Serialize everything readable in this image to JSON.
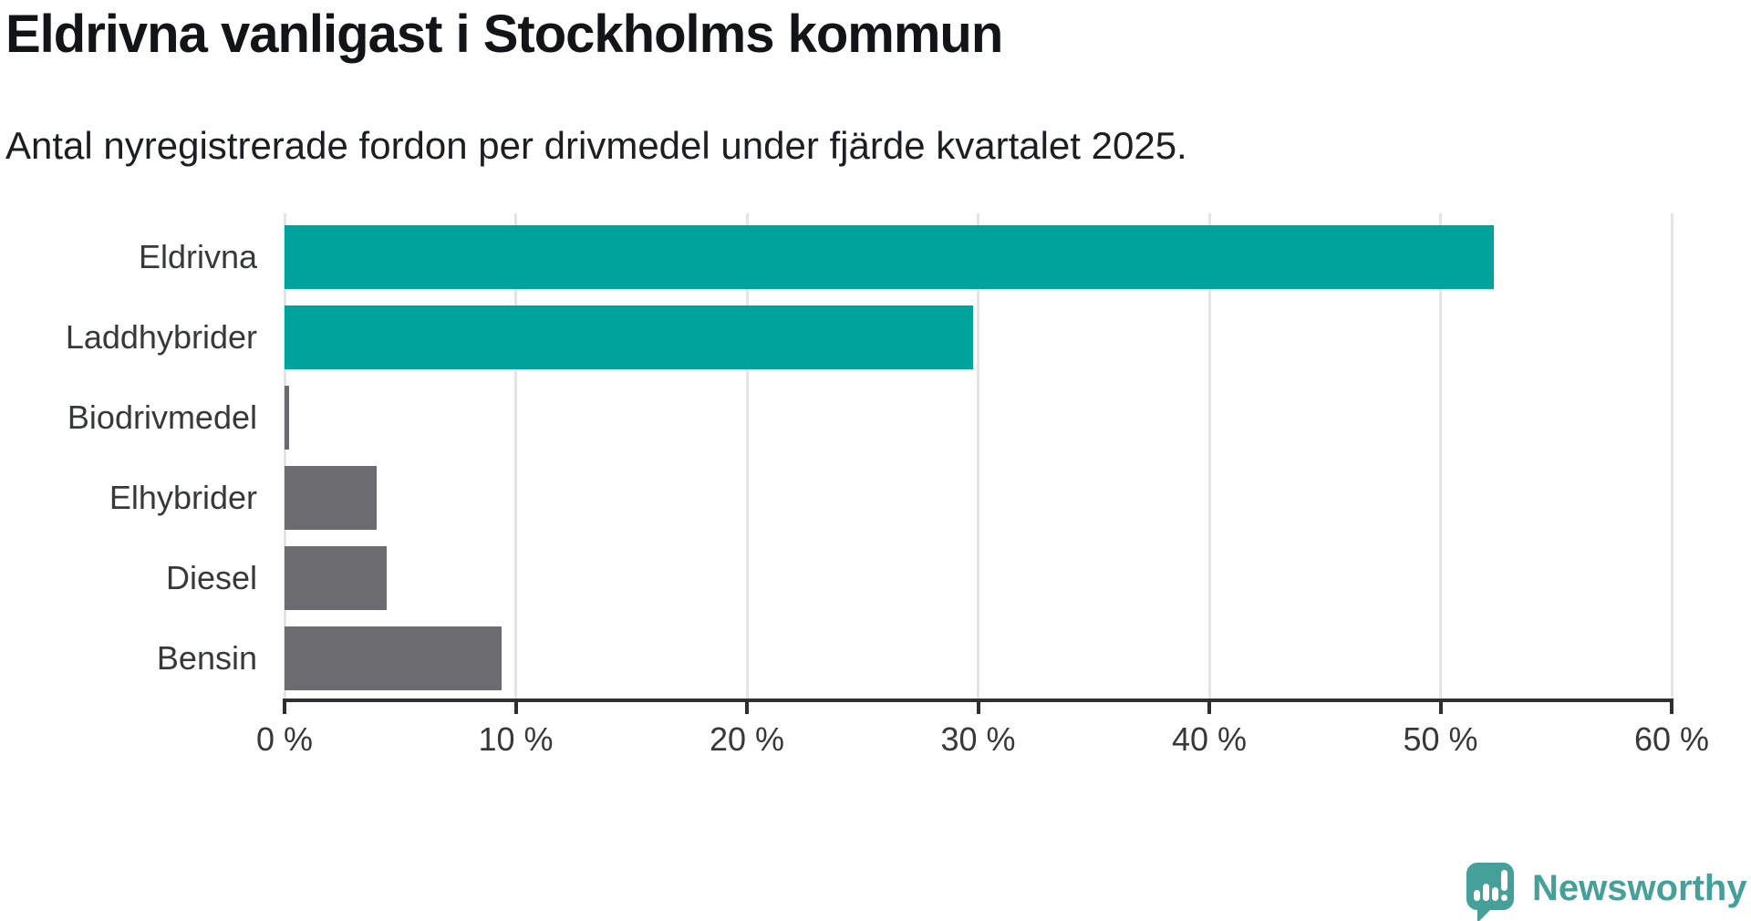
{
  "header": {
    "title": "Eldrivna vanligast i Stockholms kommun",
    "subtitle": "Antal nyregistrerade fordon per drivmedel under fjärde kvartalet 2025."
  },
  "chart_data": {
    "type": "bar",
    "orientation": "horizontal",
    "title": "Eldrivna vanligast i Stockholms kommun",
    "subtitle": "Antal nyregistrerade fordon per drivmedel under fjärde kvartalet 2025.",
    "categories": [
      "Eldrivna",
      "Laddhybrider",
      "Biodrivmedel",
      "Elhybrider",
      "Diesel",
      "Bensin"
    ],
    "values": [
      52.3,
      29.8,
      0.2,
      4.0,
      4.4,
      9.4
    ],
    "unit": "%",
    "bar_colors": [
      "#00a39b",
      "#00a39b",
      "#6b6b70",
      "#6b6b70",
      "#6b6b70",
      "#6b6b70"
    ],
    "xlim": [
      0,
      60
    ],
    "x_ticks": [
      0,
      10,
      20,
      30,
      40,
      50,
      60
    ],
    "x_tick_labels": [
      "0 %",
      "10 %",
      "20 %",
      "30 %",
      "40 %",
      "50 %",
      "60 %"
    ],
    "grid": "vertical-gridlines-on",
    "legend": "none"
  },
  "branding": {
    "logo_text": "Newsworthy",
    "logo_color": "#45a09a"
  },
  "colors": {
    "teal_bar": "#00a39b",
    "gray_bar": "#6b6b70",
    "gridline": "#e4e4e4",
    "axis": "#2f2f2f",
    "title_text": "#121417",
    "label_text": "#37383a"
  }
}
